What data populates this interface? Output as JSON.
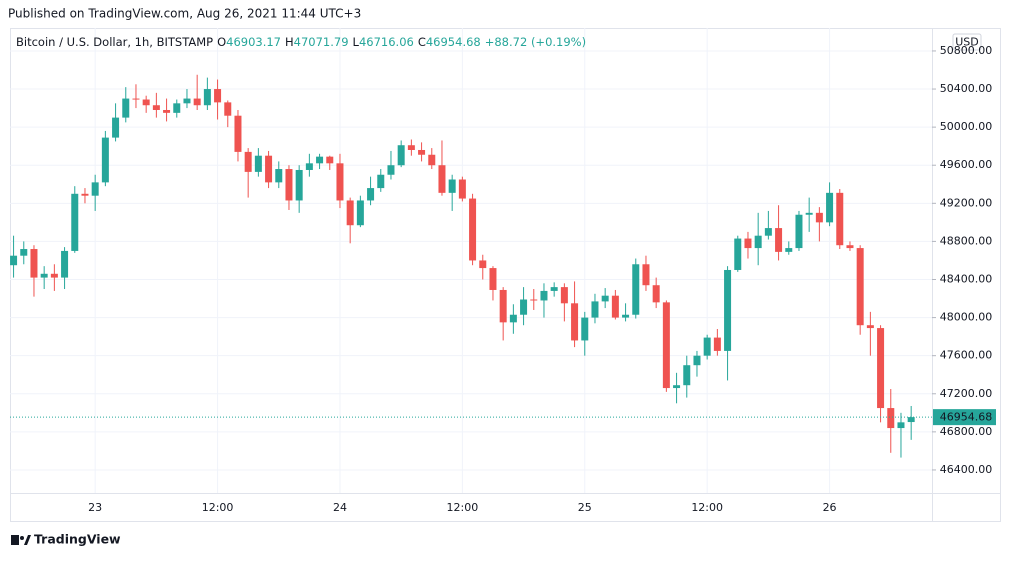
{
  "chart_data": {
    "type": "candlestick",
    "published": "Published on TradingView.com, Aug 26, 2021 11:44 UTC+3",
    "title": "Bitcoin / U.S. Dollar, 1h, BITSTAMP",
    "ohlc_labels": [
      "O",
      "H",
      "L",
      "C"
    ],
    "change": "+88.72 (+0.19%)",
    "currency": "USD",
    "footer": "TradingView",
    "up_color": "#26a69a",
    "down_color": "#ef5350",
    "grid": true,
    "categories": [
      null,
      null,
      null,
      null,
      null,
      null,
      null,
      null,
      "23",
      null,
      null,
      null,
      null,
      null,
      null,
      null,
      null,
      null,
      null,
      null,
      "12:00",
      null,
      null,
      null,
      null,
      null,
      null,
      null,
      null,
      null,
      null,
      null,
      "24",
      null,
      null,
      null,
      null,
      null,
      null,
      null,
      null,
      null,
      null,
      null,
      "12:00",
      null,
      null,
      null,
      null,
      null,
      null,
      null,
      null,
      null,
      null,
      null,
      "25",
      null,
      null,
      null,
      null,
      null,
      null,
      null,
      null,
      null,
      null,
      null,
      "12:00",
      null,
      null,
      null,
      null,
      null,
      null,
      null,
      null,
      null,
      null,
      null,
      "26",
      null,
      null,
      null,
      null,
      null,
      null,
      null,
      null
    ],
    "open": [
      48550,
      48650,
      48720,
      48420,
      48460,
      48420,
      48700,
      49300,
      49280,
      49420,
      49890,
      50100,
      50300,
      50290,
      50230,
      50180,
      50150,
      50250,
      50300,
      50230,
      50400,
      50260,
      50120,
      49740,
      49530,
      49700,
      49420,
      49560,
      49230,
      49550,
      49620,
      49690,
      49620,
      49230,
      48970,
      49230,
      49360,
      49500,
      49600,
      49810,
      49760,
      49710,
      49600,
      49310,
      49450,
      49250,
      48600,
      48520,
      48290,
      47950,
      48030,
      48190,
      48180,
      48280,
      48320,
      48150,
      47760,
      48000,
      48170,
      48230,
      48000,
      48030,
      48560,
      48340,
      48160,
      47260,
      47290,
      47500,
      47600,
      47790,
      47650,
      48500,
      48830,
      48730,
      48860,
      48940,
      48690,
      48730,
      49080,
      49100,
      49000,
      49310,
      48760,
      48730,
      47920,
      47890,
      47050,
      46840,
      46903.17
    ],
    "high": [
      48860,
      48800,
      48760,
      48540,
      48560,
      48740,
      49380,
      49360,
      49500,
      49960,
      50250,
      50420,
      50450,
      50330,
      50360,
      50300,
      50290,
      50400,
      50550,
      50520,
      50500,
      50280,
      50180,
      49780,
      49780,
      49750,
      49640,
      49600,
      49600,
      49720,
      49720,
      49700,
      49720,
      49260,
      49280,
      49480,
      49560,
      49750,
      49860,
      49870,
      49840,
      49780,
      49860,
      49500,
      49480,
      49300,
      48660,
      48540,
      48320,
      48140,
      48320,
      48300,
      48360,
      48370,
      48360,
      48380,
      48060,
      48250,
      48310,
      48290,
      48150,
      48620,
      48650,
      48420,
      48180,
      47420,
      47600,
      47650,
      47820,
      47880,
      48540,
      48860,
      48900,
      49100,
      49120,
      49180,
      48800,
      49120,
      49260,
      49160,
      49420,
      49350,
      48800,
      48760,
      48060,
      47920,
      47250,
      47000,
      47071.79
    ],
    "low": [
      48420,
      48560,
      48220,
      48300,
      48280,
      48300,
      48680,
      49200,
      49120,
      49380,
      49850,
      50050,
      50200,
      50150,
      50100,
      50060,
      50100,
      50200,
      50180,
      50180,
      50080,
      50000,
      49640,
      49260,
      49480,
      49360,
      49360,
      49130,
      49100,
      49480,
      49560,
      49550,
      49150,
      48780,
      48950,
      49180,
      49320,
      49450,
      49580,
      49700,
      49640,
      49560,
      49280,
      49120,
      49220,
      48550,
      48400,
      48180,
      47760,
      47830,
      47920,
      48080,
      48000,
      48220,
      47960,
      47690,
      47600,
      47940,
      48100,
      47980,
      47960,
      47990,
      48280,
      48100,
      47220,
      47100,
      47160,
      47380,
      47560,
      47600,
      47340,
      48480,
      48620,
      48550,
      48820,
      48600,
      48660,
      48700,
      48900,
      48800,
      48960,
      48720,
      48700,
      47820,
      47600,
      46900,
      46580,
      46530,
      46716.06
    ],
    "close": [
      48650,
      48720,
      48420,
      48460,
      48420,
      48700,
      49300,
      49280,
      49420,
      49890,
      50100,
      50300,
      50290,
      50230,
      50180,
      50150,
      50250,
      50300,
      50230,
      50400,
      50260,
      50120,
      49740,
      49530,
      49700,
      49420,
      49560,
      49230,
      49550,
      49620,
      49690,
      49620,
      49230,
      48970,
      49230,
      49360,
      49500,
      49600,
      49810,
      49760,
      49710,
      49600,
      49310,
      49450,
      49250,
      48600,
      48520,
      48290,
      47950,
      48030,
      48190,
      48180,
      48280,
      48320,
      48150,
      47760,
      48000,
      48170,
      48230,
      48000,
      48030,
      48560,
      48340,
      48160,
      47260,
      47290,
      47500,
      47600,
      47790,
      47650,
      48500,
      48830,
      48730,
      48860,
      48940,
      48690,
      48730,
      49080,
      49100,
      49000,
      49310,
      48760,
      48730,
      47920,
      47890,
      47050,
      46840,
      46900,
      46954.68
    ],
    "ylim": [
      46158,
      51041
    ],
    "yticks": [
      {
        "value": 46400,
        "label": "46400.00"
      },
      {
        "value": 46800,
        "label": "46800.00"
      },
      {
        "value": 47200,
        "label": "47200.00"
      },
      {
        "value": 47600,
        "label": "47600.00"
      },
      {
        "value": 48000,
        "label": "48000.00"
      },
      {
        "value": 48400,
        "label": "48400.00"
      },
      {
        "value": 48800,
        "label": "48800.00"
      },
      {
        "value": 49200,
        "label": "49200.00"
      },
      {
        "value": 49600,
        "label": "49600.00"
      },
      {
        "value": 50000,
        "label": "50000.00"
      },
      {
        "value": 50400,
        "label": "50400.00"
      },
      {
        "value": 50800,
        "label": "50800.00"
      }
    ]
  }
}
